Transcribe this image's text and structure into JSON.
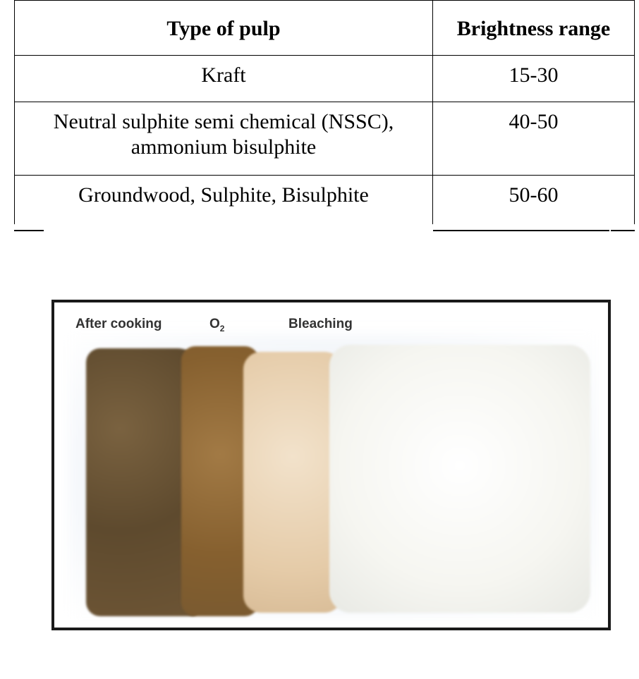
{
  "table": {
    "headers": [
      "Type of pulp",
      "Brightness range"
    ],
    "rows": [
      [
        "Kraft",
        "15-30"
      ],
      [
        "Neutral sulphite semi chemical (NSSC), ammonium bisulphite",
        "40-50"
      ],
      [
        "Groundwood, Sulphite, Bisulphite",
        "50-60"
      ]
    ]
  },
  "figure": {
    "labels": {
      "after_cooking": "After cooking",
      "o2": "O",
      "o2_sub": "2",
      "bleaching": "Bleaching"
    },
    "colors": {
      "after_cooking": "#6e5533",
      "o2": "#8a6434",
      "intermediate": "#e8d2b4",
      "bleached": "#f7f7f3"
    }
  }
}
